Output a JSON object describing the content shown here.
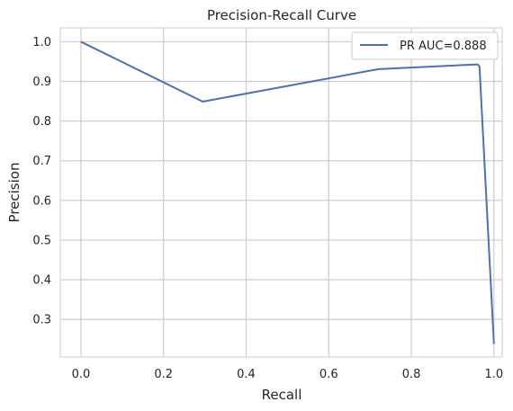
{
  "chart_data": {
    "type": "line",
    "title": "Precision-Recall Curve",
    "xlabel": "Recall",
    "ylabel": "Precision",
    "xlim": [
      -0.05,
      1.02
    ],
    "ylim": [
      0.205,
      1.035
    ],
    "xticks": [
      0.0,
      0.2,
      0.4,
      0.6,
      0.8,
      1.0
    ],
    "yticks": [
      0.3,
      0.4,
      0.5,
      0.6,
      0.7,
      0.8,
      0.9,
      1.0
    ],
    "grid": true,
    "legend_position": "top-right",
    "series": [
      {
        "name": "PR AUC=0.888",
        "color": "#4c72b0",
        "x": [
          0.0,
          0.295,
          0.72,
          0.96,
          0.965,
          1.0
        ],
        "y": [
          1.0,
          0.849,
          0.931,
          0.943,
          0.938,
          0.238
        ]
      }
    ]
  }
}
